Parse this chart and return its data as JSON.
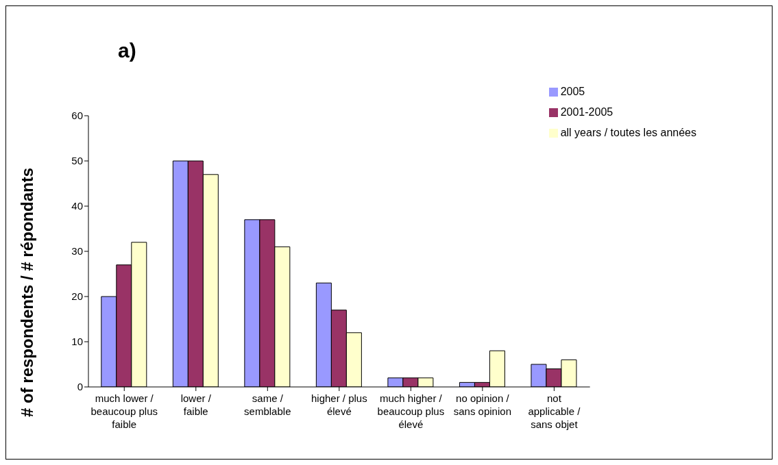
{
  "chart_data": {
    "type": "bar",
    "title": "a)",
    "ylabel": "# of respondents / # répondants",
    "categories": [
      "much lower / beaucoup plus faible",
      "lower / faible",
      "same / semblable",
      "higher / plus élevé",
      "much higher / beaucoup plus élevé",
      "no opinion / sans opinion",
      "not applicable / sans objet"
    ],
    "series": [
      {
        "name": "2005",
        "color": "#9999ff",
        "values": [
          20,
          50,
          37,
          23,
          2,
          1,
          5
        ]
      },
      {
        "name": "2001-2005",
        "color": "#993366",
        "values": [
          27,
          50,
          37,
          17,
          2,
          1,
          4
        ]
      },
      {
        "name": "all years / toutes les années",
        "color": "#ffffcc",
        "values": [
          32,
          47,
          31,
          12,
          2,
          8,
          6
        ]
      }
    ],
    "ylim": [
      0,
      60
    ],
    "yticks": [
      0,
      10,
      20,
      30,
      40,
      50,
      60
    ],
    "grid": false,
    "legend": "top right"
  }
}
